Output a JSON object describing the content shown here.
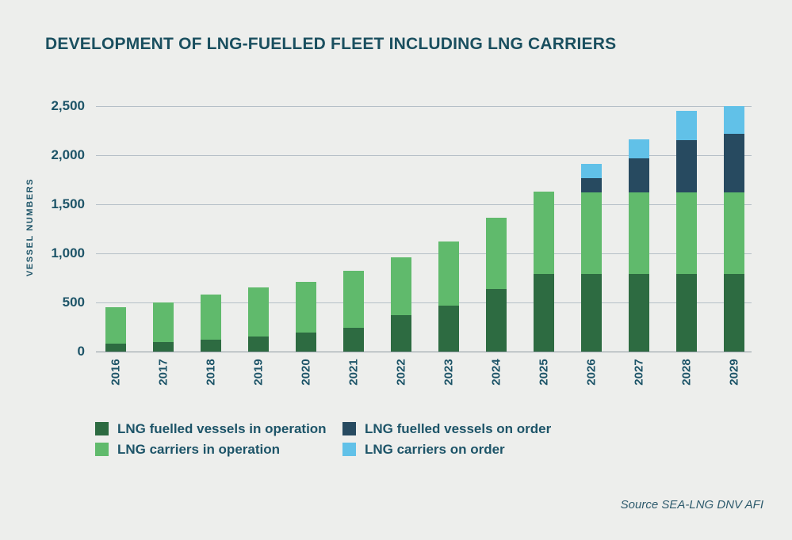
{
  "title": "DEVELOPMENT OF LNG-FUELLED FLEET INCLUDING LNG CARRIERS",
  "source_note": "Source SEA-LNG DNV AFI",
  "colors": {
    "background": "#edeeec",
    "heading_text": "#1a4f5f",
    "axis_text": "#1d5468",
    "gridline": "#b5bfc7",
    "baseline": "#8f9aa2"
  },
  "chart_data": {
    "type": "bar",
    "stacked": true,
    "title": "DEVELOPMENT OF LNG-FUELLED FLEET INCLUDING LNG CARRIERS",
    "xlabel": "",
    "ylabel": "VESSEL NUMBERS",
    "ylim": [
      0,
      2500
    ],
    "ytick_interval": 500,
    "ytick_labels": [
      "0",
      "500",
      "1,000",
      "1,500",
      "2,000",
      "2,500"
    ],
    "grid": true,
    "legend_position": "bottom",
    "categories": [
      "2016",
      "2017",
      "2018",
      "2019",
      "2020",
      "2021",
      "2022",
      "2023",
      "2024",
      "2025",
      "2026",
      "2027",
      "2028",
      "2029"
    ],
    "series": [
      {
        "name": "LNG fuelled vessels in operation",
        "color": "#2d6b41",
        "values": [
          80,
          100,
          120,
          155,
          190,
          240,
          370,
          470,
          640,
          790,
          790,
          790,
          790,
          790
        ]
      },
      {
        "name": "LNG carriers in operation",
        "color": "#60ba6c",
        "values": [
          370,
          400,
          460,
          495,
          520,
          580,
          590,
          650,
          720,
          840,
          830,
          830,
          830,
          830
        ]
      },
      {
        "name": "LNG fuelled vessels on order",
        "color": "#274a60",
        "values": [
          0,
          0,
          0,
          0,
          0,
          0,
          0,
          0,
          0,
          0,
          150,
          350,
          530,
          600
        ]
      },
      {
        "name": "LNG carriers on order",
        "color": "#61c1e8",
        "values": [
          0,
          0,
          0,
          0,
          0,
          0,
          0,
          0,
          0,
          0,
          140,
          190,
          300,
          280
        ]
      }
    ],
    "totals": [
      450,
      500,
      580,
      650,
      710,
      820,
      960,
      1120,
      1360,
      1630,
      1910,
      2160,
      2450,
      2500
    ]
  },
  "legend": {
    "items": [
      {
        "label": "LNG fuelled vessels in operation",
        "color": "#2d6b41"
      },
      {
        "label": "LNG fuelled vessels on order",
        "color": "#274a60"
      },
      {
        "label": "LNG carriers in operation",
        "color": "#60ba6c"
      },
      {
        "label": "LNG carriers on order",
        "color": "#61c1e8"
      }
    ]
  }
}
